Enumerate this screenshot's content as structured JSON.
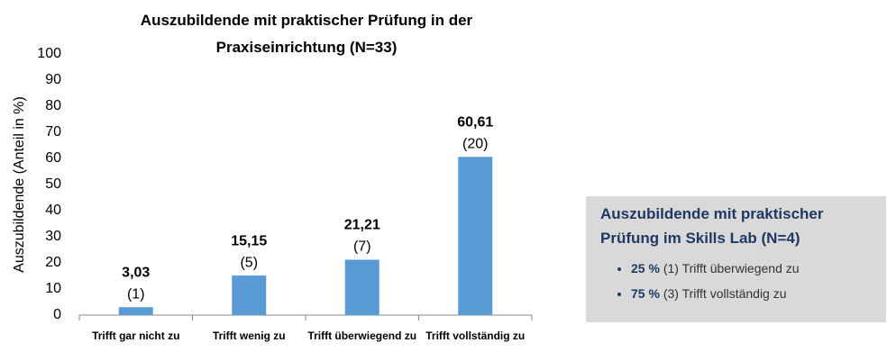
{
  "chart_data": {
    "type": "bar",
    "title": "Auszubildende mit praktischer Prüfung in der Praxiseinrichtung (N=33)",
    "ylabel": "Auszubildende (Anteil in %)",
    "categories": [
      "Trifft gar nicht zu",
      "Trifft wenig zu",
      "Trifft überwiegend zu",
      "Trifft vollständig zu"
    ],
    "values": [
      3.03,
      15.15,
      21.21,
      60.61
    ],
    "value_labels": [
      "3,03",
      "15,15",
      "21,21",
      "60,61"
    ],
    "count_labels": [
      "(1)",
      "(5)",
      "(7)",
      "(20)"
    ],
    "color": "#5b9bd5",
    "ylim": [
      0,
      100
    ],
    "yticks": [
      0,
      10,
      20,
      30,
      40,
      50,
      60,
      70,
      80,
      90,
      100
    ],
    "grid": false
  },
  "panel": {
    "title": "Auszubildende mit praktischer Prüfung im Skills Lab (N=4)",
    "items": [
      {
        "percent": "25 %",
        "count": "(1)",
        "text": "Trifft überwiegend zu"
      },
      {
        "percent": "75 %",
        "count": "(3)",
        "text": "Trifft vollständig zu"
      }
    ]
  }
}
